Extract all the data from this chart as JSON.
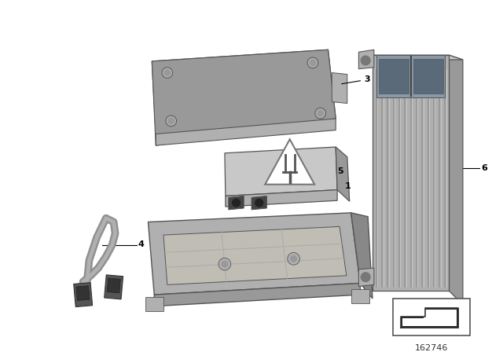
{
  "bg_color": "#ffffff",
  "part_number": "162746",
  "comp_color_light": "#c8c8c8",
  "comp_color_mid": "#b0b0b0",
  "comp_color_dark": "#888888",
  "comp_color_side": "#999999",
  "edge_color": "#555555"
}
